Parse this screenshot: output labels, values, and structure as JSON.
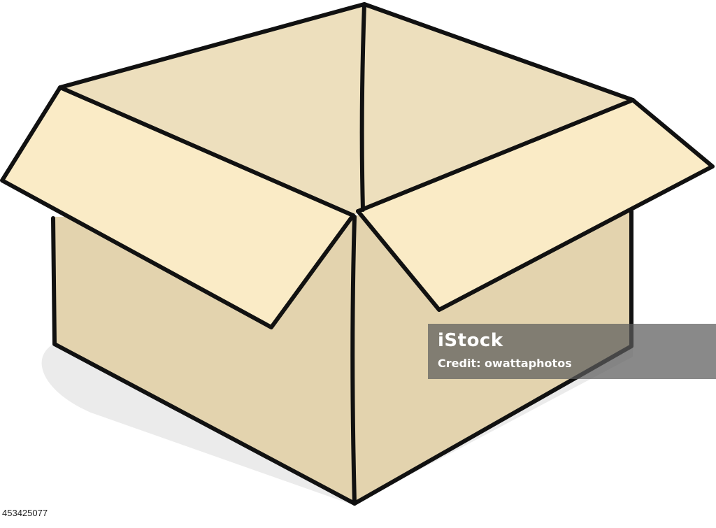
{
  "image": {
    "subject": "open-cardboard-box",
    "colors": {
      "box_front": "#e3d3ae",
      "box_inside": "#eddfbd",
      "flap": "#faebc6",
      "outline": "#111111",
      "shadow": "#e9e9e9",
      "watermark_bg": "#5c5c5c"
    }
  },
  "watermark": {
    "brand": "iStock",
    "credit_prefix": "Credit:",
    "credit_name": "owattaphotos"
  },
  "image_id": "453425077"
}
